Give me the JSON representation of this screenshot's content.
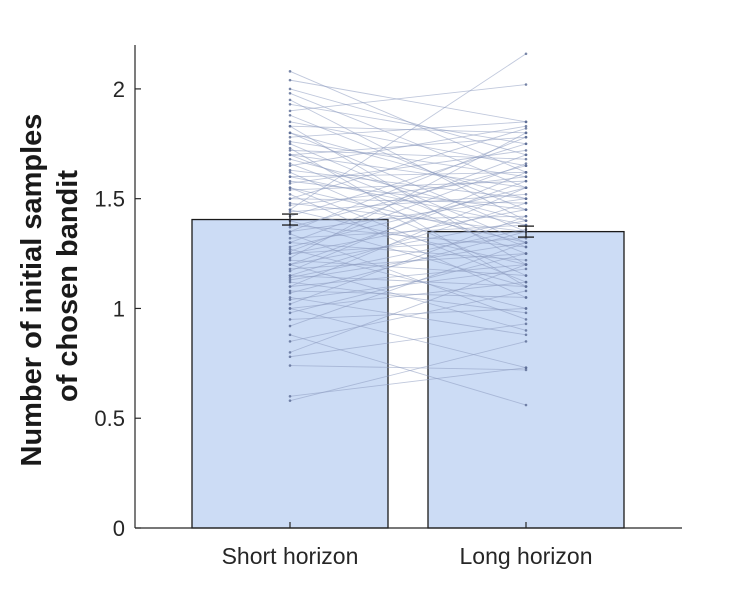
{
  "chart_data": {
    "type": "bar",
    "title": "",
    "xlabel": "",
    "ylabel": [
      "Number of initial samples",
      "of chosen bandit"
    ],
    "categories": [
      "Short horizon",
      "Long horizon"
    ],
    "values": [
      1.405,
      1.35
    ],
    "error": [
      0.025,
      0.025
    ],
    "ylim": [
      0,
      2.2
    ],
    "yticks": [
      0,
      0.5,
      1,
      1.5,
      2
    ],
    "ytick_labels": [
      "0",
      "0.5",
      "1",
      "1.5",
      "2"
    ],
    "grid": false,
    "colors": {
      "bar_fill": "#ccdcf5",
      "bar_edge": "#1a1a1a",
      "pair_line": "#8c9bbf",
      "axis": "#262626"
    },
    "participants": {
      "x": [
        "Short horizon",
        "Long horizon"
      ],
      "pairs": [
        [
          2.08,
          1.62
        ],
        [
          2.04,
          1.85
        ],
        [
          2.0,
          1.7
        ],
        [
          1.98,
          1.55
        ],
        [
          1.95,
          1.4
        ],
        [
          1.93,
          1.75
        ],
        [
          1.9,
          2.02
        ],
        [
          1.88,
          1.45
        ],
        [
          1.85,
          1.65
        ],
        [
          1.83,
          1.2
        ],
        [
          1.83,
          1.8
        ],
        [
          1.8,
          1.5
        ],
        [
          1.8,
          1.35
        ],
        [
          1.78,
          1.85
        ],
        [
          1.76,
          1.6
        ],
        [
          1.75,
          1.3
        ],
        [
          1.73,
          1.1
        ],
        [
          1.72,
          1.68
        ],
        [
          1.7,
          1.55
        ],
        [
          1.7,
          1.78
        ],
        [
          1.68,
          1.4
        ],
        [
          1.66,
          1.25
        ],
        [
          1.65,
          1.83
        ],
        [
          1.63,
          1.5
        ],
        [
          1.62,
          1.15
        ],
        [
          1.6,
          1.62
        ],
        [
          1.58,
          1.45
        ],
        [
          1.57,
          1.72
        ],
        [
          1.55,
          1.3
        ],
        [
          1.54,
          1.58
        ],
        [
          1.52,
          1.05
        ],
        [
          1.5,
          1.48
        ],
        [
          1.5,
          1.82
        ],
        [
          1.48,
          1.35
        ],
        [
          1.47,
          1.6
        ],
        [
          1.45,
          1.2
        ],
        [
          1.44,
          1.52
        ],
        [
          1.42,
          1.75
        ],
        [
          1.4,
          1.1
        ],
        [
          1.4,
          1.42
        ],
        [
          1.38,
          1.28
        ],
        [
          1.37,
          1.65
        ],
        [
          1.35,
          1.5
        ],
        [
          1.34,
          0.95
        ],
        [
          1.32,
          1.38
        ],
        [
          1.3,
          1.7
        ],
        [
          1.3,
          1.22
        ],
        [
          1.28,
          1.55
        ],
        [
          1.27,
          1.0
        ],
        [
          1.25,
          1.45
        ],
        [
          1.25,
          1.32
        ],
        [
          1.23,
          1.8
        ],
        [
          1.22,
          1.15
        ],
        [
          1.2,
          1.4
        ],
        [
          1.2,
          0.9
        ],
        [
          1.18,
          1.25
        ],
        [
          1.17,
          1.62
        ],
        [
          1.15,
          1.1
        ],
        [
          1.15,
          1.48
        ],
        [
          1.13,
          1.3
        ],
        [
          1.12,
          0.98
        ],
        [
          1.1,
          1.2
        ],
        [
          1.1,
          1.55
        ],
        [
          1.08,
          1.05
        ],
        [
          1.07,
          1.35
        ],
        [
          1.05,
          0.88
        ],
        [
          1.04,
          1.18
        ],
        [
          1.02,
          1.42
        ],
        [
          1.0,
          1.12
        ],
        [
          1.0,
          0.73
        ],
        [
          0.98,
          1.25
        ],
        [
          0.95,
          1.0
        ],
        [
          0.92,
          1.3
        ],
        [
          0.88,
          0.56
        ],
        [
          0.85,
          1.08
        ],
        [
          0.8,
          1.2
        ],
        [
          0.78,
          0.93
        ],
        [
          0.74,
          0.72
        ],
        [
          0.6,
          0.73
        ],
        [
          0.58,
          0.85
        ],
        [
          1.6,
          1.38
        ],
        [
          1.45,
          2.16
        ],
        [
          1.35,
          1.78
        ],
        [
          1.2,
          1.58
        ],
        [
          1.55,
          1.12
        ],
        [
          1.7,
          1.28
        ],
        [
          1.26,
          1.66
        ],
        [
          1.14,
          1.36
        ]
      ]
    }
  }
}
